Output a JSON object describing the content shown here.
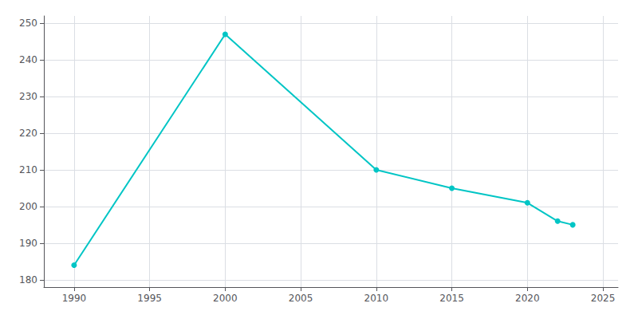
{
  "chart_data": {
    "type": "line",
    "x": [
      1990,
      2000,
      2010,
      2015,
      2020,
      2022,
      2023
    ],
    "values": [
      184,
      247,
      210,
      205,
      201,
      196,
      195
    ],
    "color": "#00C5C5",
    "marker": "circle",
    "xlim": [
      1988,
      2026
    ],
    "xticks": [
      1990,
      1995,
      2000,
      2005,
      2010,
      2015,
      2020,
      2025
    ],
    "ylim": [
      178,
      252
    ],
    "yticks": [
      180,
      190,
      200,
      210,
      220,
      230,
      240,
      250
    ],
    "grid": true
  }
}
